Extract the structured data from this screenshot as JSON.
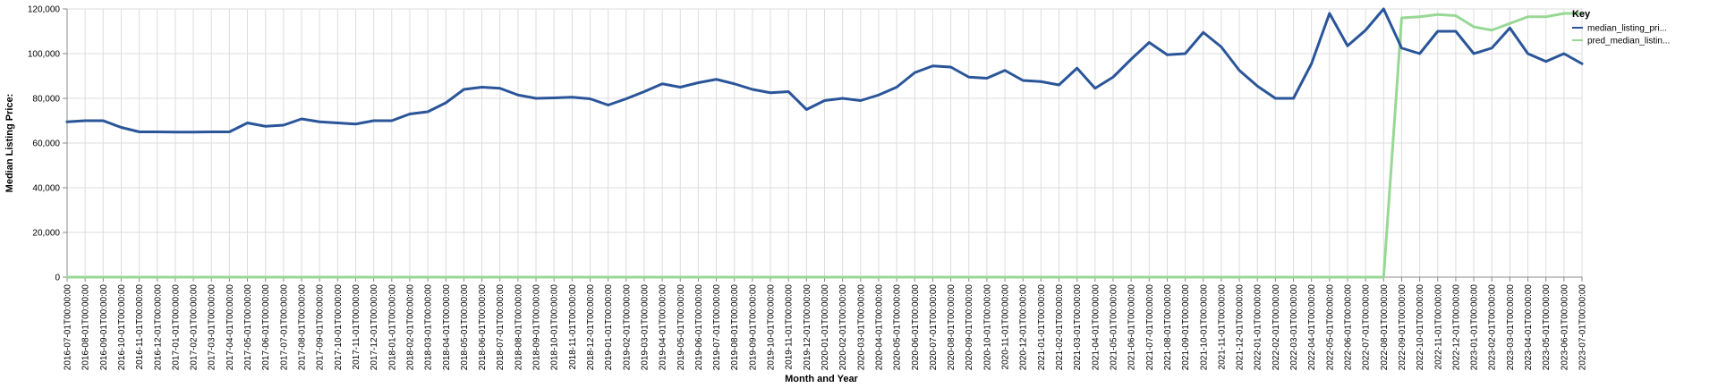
{
  "chart_data": {
    "type": "line",
    "xlabel": "Month and Year",
    "ylabel": "Median Listing Price:",
    "ylim": [
      0,
      120000
    ],
    "yticks": [
      "0",
      "20,000",
      "40,000",
      "60,000",
      "80,000",
      "100,000",
      "120,000"
    ],
    "ytick_values": [
      0,
      20000,
      40000,
      60000,
      80000,
      100000,
      120000
    ],
    "grid": true,
    "legend": {
      "title": "Key",
      "placement": "top-right"
    },
    "x": [
      "2016-07-01T00:00:00",
      "2016-08-01T00:00:00",
      "2016-09-01T00:00:00",
      "2016-10-01T00:00:00",
      "2016-11-01T00:00:00",
      "2016-12-01T00:00:00",
      "2017-01-01T00:00:00",
      "2017-02-01T00:00:00",
      "2017-03-01T00:00:00",
      "2017-04-01T00:00:00",
      "2017-05-01T00:00:00",
      "2017-06-01T00:00:00",
      "2017-07-01T00:00:00",
      "2017-08-01T00:00:00",
      "2017-09-01T00:00:00",
      "2017-10-01T00:00:00",
      "2017-11-01T00:00:00",
      "2017-12-01T00:00:00",
      "2018-01-01T00:00:00",
      "2018-02-01T00:00:00",
      "2018-03-01T00:00:00",
      "2018-04-01T00:00:00",
      "2018-05-01T00:00:00",
      "2018-06-01T00:00:00",
      "2018-07-01T00:00:00",
      "2018-08-01T00:00:00",
      "2018-09-01T00:00:00",
      "2018-10-01T00:00:00",
      "2018-11-01T00:00:00",
      "2018-12-01T00:00:00",
      "2019-01-01T00:00:00",
      "2019-02-01T00:00:00",
      "2019-03-01T00:00:00",
      "2019-04-01T00:00:00",
      "2019-05-01T00:00:00",
      "2019-06-01T00:00:00",
      "2019-07-01T00:00:00",
      "2019-08-01T00:00:00",
      "2019-09-01T00:00:00",
      "2019-10-01T00:00:00",
      "2019-11-01T00:00:00",
      "2019-12-01T00:00:00",
      "2020-01-01T00:00:00",
      "2020-02-01T00:00:00",
      "2020-03-01T00:00:00",
      "2020-04-01T00:00:00",
      "2020-05-01T00:00:00",
      "2020-06-01T00:00:00",
      "2020-07-01T00:00:00",
      "2020-08-01T00:00:00",
      "2020-09-01T00:00:00",
      "2020-10-01T00:00:00",
      "2020-11-01T00:00:00",
      "2020-12-01T00:00:00",
      "2021-01-01T00:00:00",
      "2021-02-01T00:00:00",
      "2021-03-01T00:00:00",
      "2021-04-01T00:00:00",
      "2021-05-01T00:00:00",
      "2021-06-01T00:00:00",
      "2021-07-01T00:00:00",
      "2021-08-01T00:00:00",
      "2021-09-01T00:00:00",
      "2021-10-01T00:00:00",
      "2021-11-01T00:00:00",
      "2021-12-01T00:00:00",
      "2022-01-01T00:00:00",
      "2022-02-01T00:00:00",
      "2022-03-01T00:00:00",
      "2022-04-01T00:00:00",
      "2022-05-01T00:00:00",
      "2022-06-01T00:00:00",
      "2022-07-01T00:00:00",
      "2022-08-01T00:00:00",
      "2022-09-01T00:00:00",
      "2022-10-01T00:00:00",
      "2022-11-01T00:00:00",
      "2022-12-01T00:00:00",
      "2023-01-01T00:00:00",
      "2023-02-01T00:00:00",
      "2023-03-01T00:00:00",
      "2023-04-01T00:00:00",
      "2023-05-01T00:00:00",
      "2023-06-01T00:00:00",
      "2023-07-01T00:00:00"
    ],
    "series": [
      {
        "name": "median_listing_pri...",
        "color": "#2a5599",
        "values": [
          69500,
          70000,
          70000,
          67000,
          65000,
          65000,
          64900,
          64900,
          65000,
          65000,
          69000,
          67500,
          68000,
          70800,
          69500,
          69000,
          68500,
          70000,
          70000,
          73000,
          74000,
          78000,
          84000,
          85000,
          84500,
          81500,
          80000,
          80200,
          80500,
          79800,
          77000,
          79800,
          83000,
          86500,
          85000,
          87000,
          88500,
          86500,
          84000,
          82500,
          83000,
          75000,
          79000,
          80000,
          79000,
          81500,
          85000,
          91500,
          94500,
          94000,
          89500,
          89000,
          92500,
          88000,
          87500,
          86000,
          93500,
          84500,
          89500,
          97500,
          105000,
          99500,
          100000,
          109500,
          103000,
          92500,
          85500,
          80000,
          80000,
          95500,
          118000,
          103500,
          110500,
          120000,
          102500,
          100000,
          110000,
          110000,
          100000,
          102500,
          111500,
          100000,
          96500,
          100000,
          95500
        ]
      },
      {
        "name": "pred_median_listin...",
        "color": "#98d895",
        "values": [
          0,
          0,
          0,
          0,
          0,
          0,
          0,
          0,
          0,
          0,
          0,
          0,
          0,
          0,
          0,
          0,
          0,
          0,
          0,
          0,
          0,
          0,
          0,
          0,
          0,
          0,
          0,
          0,
          0,
          0,
          0,
          0,
          0,
          0,
          0,
          0,
          0,
          0,
          0,
          0,
          0,
          0,
          0,
          0,
          0,
          0,
          0,
          0,
          0,
          0,
          0,
          0,
          0,
          0,
          0,
          0,
          0,
          0,
          0,
          0,
          0,
          0,
          0,
          0,
          0,
          0,
          0,
          0,
          0,
          0,
          0,
          0,
          0,
          0,
          116000,
          116500,
          117500,
          117000,
          112000,
          110500,
          113500,
          116500,
          116500,
          118000,
          118000
        ]
      }
    ]
  }
}
